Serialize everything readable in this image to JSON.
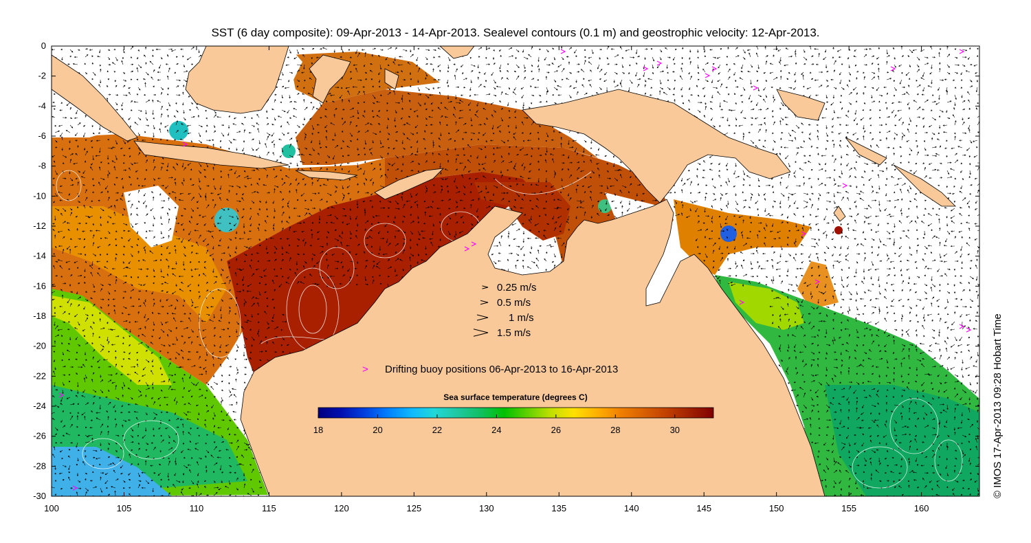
{
  "title": "SST (6 day composite): 09-Apr-2013 - 14-Apr-2013. Sealevel contours (0.1 m) and geostrophic velocity: 12-Apr-2013.",
  "axes": {
    "x_ticks": [
      "100",
      "105",
      "110",
      "115",
      "120",
      "125",
      "130",
      "135",
      "140",
      "145",
      "150",
      "155",
      "160"
    ],
    "y_ticks": [
      "0",
      "-2",
      "-4",
      "-6",
      "-8",
      "-10",
      "-12",
      "-14",
      "-16",
      "-18",
      "-20",
      "-22",
      "-24",
      "-26",
      "-28",
      "-30"
    ]
  },
  "velocity_legend": [
    {
      "label": "0.25 m/s",
      "speed": 0.25
    },
    {
      "label": "0.5 m/s",
      "speed": 0.5
    },
    {
      "label": "1 m/s",
      "speed": 1
    },
    {
      "label": "1.5 m/s",
      "speed": 1.5
    }
  ],
  "buoy_legend": {
    "symbol": ">",
    "label": "Drifting buoy positions 06-Apr-2013 to 16-Apr-2013",
    "color": "#ff00ff"
  },
  "colorbar": {
    "title": "Sea surface temperature (degrees C)",
    "ticks": [
      "18",
      "20",
      "22",
      "24",
      "26",
      "28",
      "30"
    ],
    "min": 18,
    "max": 31.3,
    "colors": [
      "#00007f",
      "#0010b0",
      "#0040e0",
      "#0080ff",
      "#10b8ff",
      "#20d8d8",
      "#20c8a0",
      "#10c060",
      "#00c000",
      "#60d000",
      "#c0e000",
      "#ffe000",
      "#ffb000",
      "#f08000",
      "#d86000",
      "#c04000",
      "#a02000",
      "#800000"
    ]
  },
  "land_color": "#f9c99a",
  "credit": "© IMOS 17-Apr-2013 09:28 Hobart Time"
}
